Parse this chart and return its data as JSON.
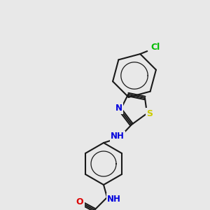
{
  "bg_color": "#e8e8e8",
  "bond_color": "#1a1a1a",
  "atom_colors": {
    "N": "#0000dd",
    "O": "#dd0000",
    "S": "#cccc00",
    "Cl": "#00bb00",
    "C": "#1a1a1a"
  },
  "lw": 1.5,
  "font_size": 8.5
}
